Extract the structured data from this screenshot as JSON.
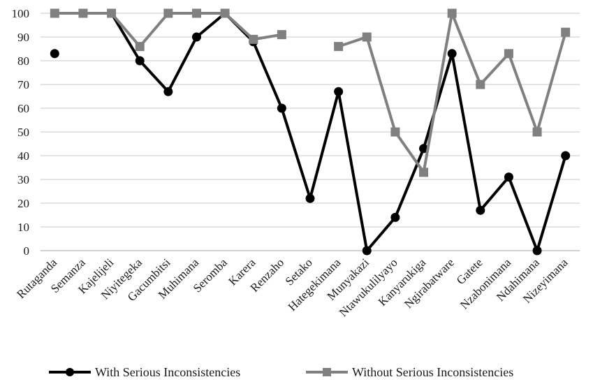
{
  "chart_data": {
    "type": "line",
    "categories": [
      "Rutaganda",
      "Semanza",
      "Kajelijeli",
      "Niyitegeka",
      "Gacumbitsi",
      "Muhimana",
      "Seromba",
      "Karera",
      "Renzaho",
      "Setako",
      "Hategekimana",
      "Munyakazi",
      "Ntawukulilyayo",
      "Kanyarukiga",
      "Ngirabatware",
      "Gatete",
      "Nzabonimana",
      "Ndahimana",
      "Nizeyimana"
    ],
    "ylim": [
      0,
      100
    ],
    "yticks": [
      0,
      10,
      20,
      30,
      40,
      50,
      60,
      70,
      80,
      90,
      100
    ],
    "grid": true,
    "legend_position": "bottom",
    "series": [
      {
        "name": "With Serious Inconsistencies",
        "color": "#000000",
        "marker": "circle",
        "values": [
          83,
          null,
          100,
          80,
          67,
          90,
          100,
          88,
          60,
          22,
          67,
          0,
          14,
          43,
          83,
          17,
          31,
          0,
          40
        ]
      },
      {
        "name": "Without Serious Inconsistencies",
        "color": "#808080",
        "marker": "square",
        "values": [
          100,
          100,
          100,
          86,
          100,
          100,
          100,
          89,
          91,
          null,
          86,
          90,
          50,
          33,
          100,
          70,
          83,
          50,
          92
        ]
      }
    ]
  }
}
